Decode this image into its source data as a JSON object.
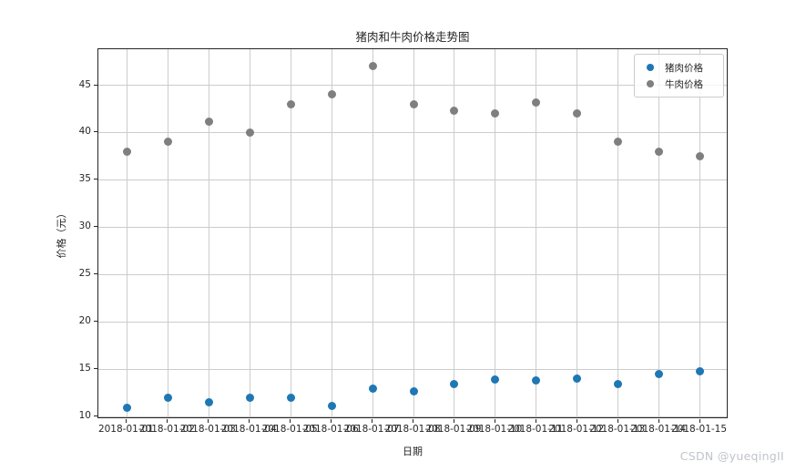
{
  "watermark": "CSDN @yueqingII",
  "chart_data": {
    "type": "scatter",
    "title": "猪肉和牛肉价格走势图",
    "xlabel": "日期",
    "ylabel": "价格（元）",
    "categories": [
      "2018-01-01",
      "2018-01-02",
      "2018-01-03",
      "2018-01-04",
      "2018-01-05",
      "2018-01-06",
      "2018-01-07",
      "2018-01-08",
      "2018-01-09",
      "2018-01-10",
      "2018-01-11",
      "2018-01-12",
      "2018-01-13",
      "2018-01-14",
      "2018-01-15"
    ],
    "series": [
      {
        "name": "猪肉价格",
        "color": "#1f77b4",
        "values": [
          11.0,
          12.0,
          11.5,
          12.0,
          12.0,
          11.1,
          13.0,
          12.7,
          13.5,
          13.9,
          13.8,
          14.0,
          13.5,
          14.5,
          14.8
        ]
      },
      {
        "name": "牛肉价格",
        "color": "#7f7f7f",
        "values": [
          38.0,
          39.0,
          41.2,
          40.0,
          43.0,
          44.0,
          47.0,
          43.0,
          42.3,
          42.0,
          43.2,
          42.0,
          39.0,
          38.0,
          37.5
        ]
      }
    ],
    "yticks": [
      10,
      15,
      20,
      25,
      30,
      35,
      40,
      45
    ],
    "ylim": [
      9.75,
      48.8
    ],
    "xlim": [
      -0.7,
      14.7
    ],
    "grid": true,
    "legend_position": "upper right",
    "colors": {
      "grid": "#cccccc",
      "spine": "#262626",
      "watermark": "#c1c4ca"
    }
  }
}
